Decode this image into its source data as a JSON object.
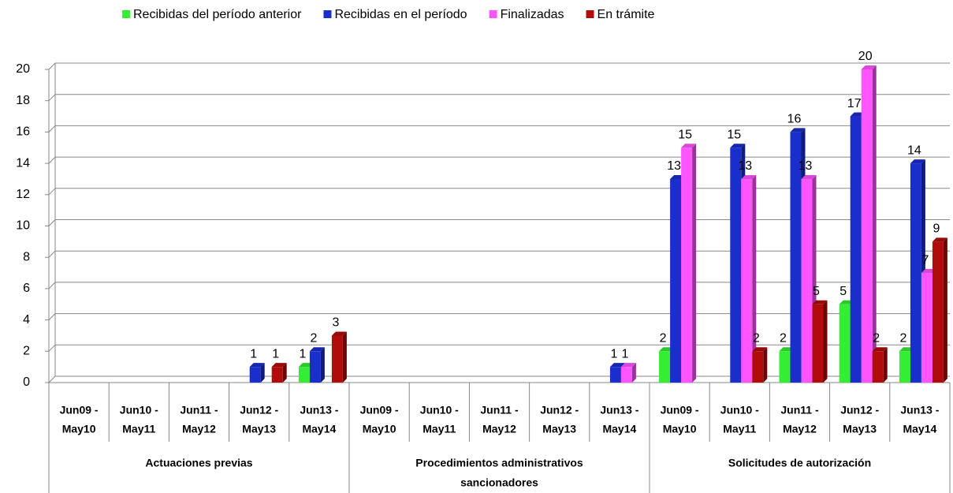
{
  "chart_data": {
    "type": "bar",
    "categories": [
      [
        "Jun09 -",
        "May10"
      ],
      [
        "Jun10 -",
        "May11"
      ],
      [
        "Jun11 -",
        "May12"
      ],
      [
        "Jun12 -",
        "May13"
      ],
      [
        "Jun13 -",
        "May14"
      ],
      [
        "Jun09 -",
        "May10"
      ],
      [
        "Jun10 -",
        "May11"
      ],
      [
        "Jun11 -",
        "May12"
      ],
      [
        "Jun12 -",
        "May13"
      ],
      [
        "Jun13 -",
        "May14"
      ],
      [
        "Jun09 -",
        "May10"
      ],
      [
        "Jun10 -",
        "May11"
      ],
      [
        "Jun11 -",
        "May12"
      ],
      [
        "Jun12 -",
        "May13"
      ],
      [
        "Jun13 -",
        "May14"
      ]
    ],
    "groups": [
      [
        "Actuaciones previas"
      ],
      [
        "Procedimientos administrativos",
        "sancionadores"
      ],
      [
        "Solicitudes de autorización"
      ]
    ],
    "series": [
      {
        "name": "Recibidas del período anterior",
        "color": "#33ee33",
        "values": [
          null,
          null,
          null,
          null,
          1,
          null,
          null,
          null,
          null,
          null,
          2,
          null,
          2,
          5,
          2
        ]
      },
      {
        "name": "Recibidas en el período",
        "color": "#1a2ecc",
        "values": [
          null,
          null,
          null,
          1,
          2,
          null,
          null,
          null,
          null,
          1,
          13,
          15,
          16,
          17,
          14
        ]
      },
      {
        "name": "Finalizadas",
        "color": "#ff55ff",
        "values": [
          null,
          null,
          null,
          null,
          null,
          null,
          null,
          null,
          null,
          1,
          15,
          13,
          13,
          20,
          7
        ]
      },
      {
        "name": "En trámite",
        "color": "#b00c0c",
        "values": [
          null,
          null,
          null,
          1,
          3,
          null,
          null,
          null,
          null,
          null,
          null,
          2,
          5,
          2,
          9
        ]
      }
    ],
    "ylim": [
      0,
      20
    ],
    "yticks": [
      0,
      2,
      4,
      6,
      8,
      10,
      12,
      14,
      16,
      18,
      20
    ],
    "grid": true,
    "legend": "top"
  }
}
